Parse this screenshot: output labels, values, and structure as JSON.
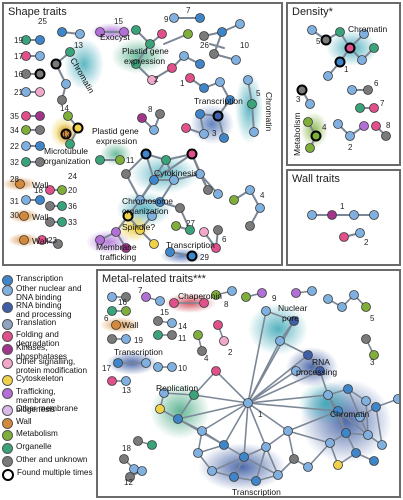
{
  "panels": {
    "shape": "Shape traits",
    "density": "Density*",
    "wall": "Wall traits",
    "metal": "Metal-related traits***"
  },
  "category_colors": {
    "transcription": "#3e86c9",
    "nuclear_dna": "#7fb0e0",
    "rna": "#3f5fa8",
    "translation": "#8fa3bf",
    "folding": "#e0508a",
    "kinases": "#a0358a",
    "other_signalling": "#f2a8c8",
    "cytoskeleton": "#f0d24a",
    "trafficking": "#b26fd6",
    "other_membrane": "#d9b8ea",
    "wall": "#d4893a",
    "metabolism": "#7fae3a",
    "organelle": "#3aa37a",
    "other_unknown": "#7a7a7a"
  },
  "legend": [
    {
      "label": "Transcription",
      "color": "#3e86c9"
    },
    {
      "label": "Other nuclear and\nDNA binding",
      "color": "#7fb0e0"
    },
    {
      "label": "RNA binding\nand processing",
      "color": "#3f5fa8"
    },
    {
      "label": "Translation",
      "color": "#8fa3bf"
    },
    {
      "label": "Folding and degradation",
      "color": "#e0508a"
    },
    {
      "label": "Kinases, phosphatases",
      "color": "#a0358a"
    },
    {
      "label": "Other signalling,\nprotein modification",
      "color": "#f2a8c8"
    },
    {
      "label": "Cytoskeleton",
      "color": "#f0d24a"
    },
    {
      "label": "Trafficking,\nmembrane biogenesis",
      "color": "#b26fd6"
    },
    {
      "label": "Other membrane",
      "color": "#d9b8ea"
    },
    {
      "label": "Wall",
      "color": "#d4893a"
    },
    {
      "label": "Metabolism",
      "color": "#7fae3a"
    },
    {
      "label": "Organelle",
      "color": "#3aa37a"
    },
    {
      "label": "Other and unknown",
      "color": "#7a7a7a"
    },
    {
      "label": "Found multiple times",
      "color": "#ffffff",
      "ring": true
    }
  ],
  "shape_labels": {
    "exocyst": "Exocyst",
    "chromatin_a": "Chromatin",
    "plastid1": "Plastid gene\nexpression",
    "transcription": "Transcription",
    "chromatin_b": "Chromatin",
    "plastid2": "Plastid gene\nexpression",
    "microtubule": "Microtubule\norganization",
    "wall_a": "Wall",
    "wall_b": "Wall",
    "wall_c": "Wall",
    "cytokinesis": "Cytokinesis",
    "chromosome": "Chromosome\norganization",
    "spindle": "Spindle?",
    "membrane": "Membrane\ntrafficking",
    "transcription2": "Transcription"
  },
  "shape_numbers": [
    "25",
    "15",
    "7",
    "19",
    "17",
    "13",
    "9",
    "26",
    "10",
    "16",
    "21",
    "2",
    "1",
    "14",
    "5",
    "35",
    "34",
    "22",
    "8",
    "12",
    "3",
    "32",
    "11",
    "24",
    "28",
    "18",
    "36",
    "20",
    "31",
    "4",
    "33",
    "30",
    "23",
    "27",
    "6",
    "29"
  ],
  "density_labels": {
    "chromatin": "Chromatin",
    "metabolism": "Metabolism"
  },
  "density_numbers": [
    "5",
    "1",
    "3",
    "6",
    "7",
    "2",
    "4",
    "8"
  ],
  "wall_numbers": [
    "1",
    "2"
  ],
  "metal_labels": {
    "chaperonin": "Chaperonin",
    "wall": "Wall",
    "nuclear_pore": "Nuclear\npore",
    "transcription_a": "Transcription",
    "rna_processing": "RNA\nprocessing",
    "replication": "Replication",
    "chromatin": "Chromatin",
    "transcription_b": "Transcription"
  },
  "metal_numbers": [
    "7",
    "16",
    "15",
    "8",
    "9",
    "2",
    "5",
    "6",
    "14",
    "19",
    "11",
    "4",
    "3",
    "17",
    "10",
    "13",
    "12",
    "18",
    "1"
  ]
}
